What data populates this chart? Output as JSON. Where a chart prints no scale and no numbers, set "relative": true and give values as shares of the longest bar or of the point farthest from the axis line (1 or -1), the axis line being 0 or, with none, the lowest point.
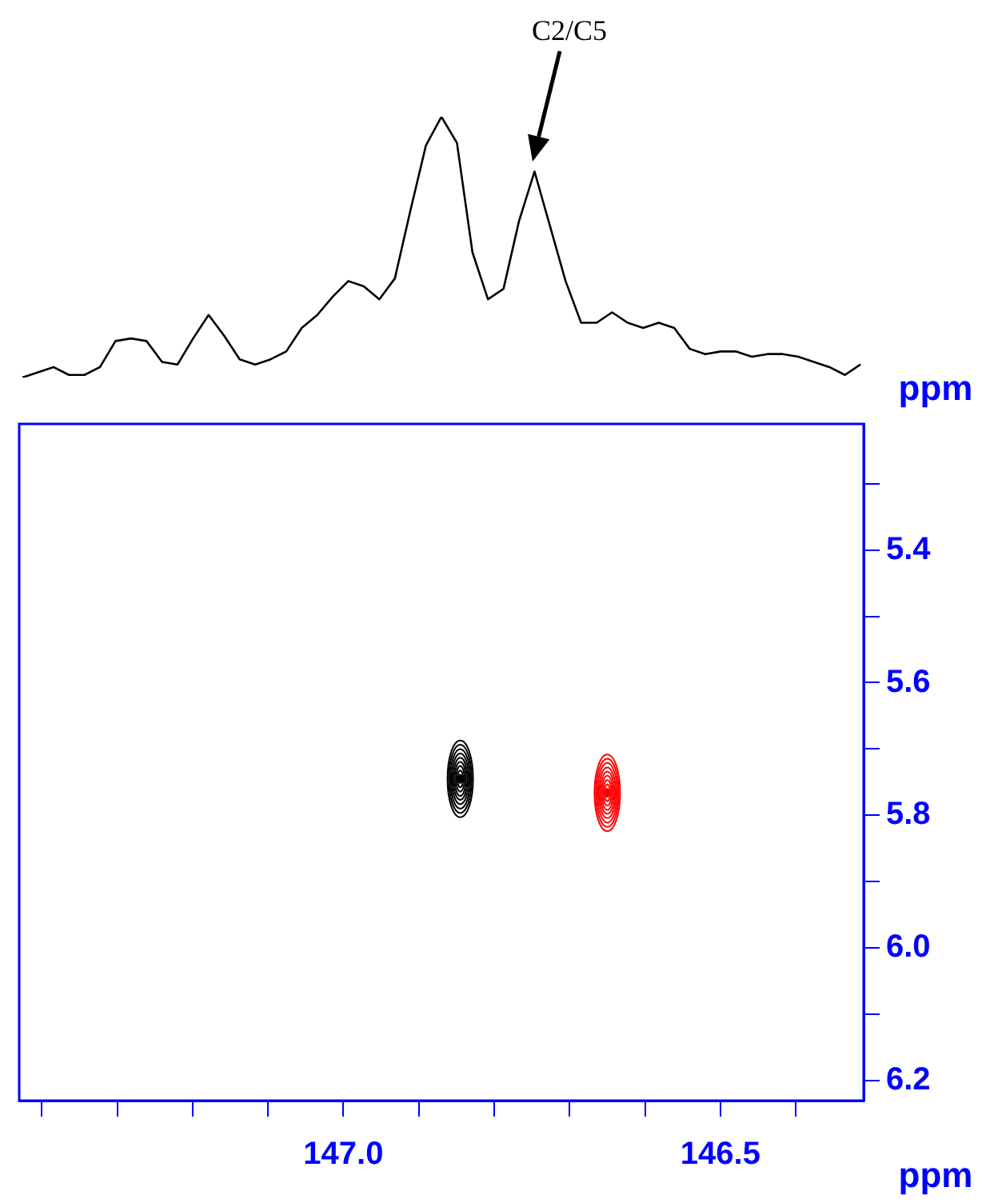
{
  "chart_data": [
    {
      "type": "line",
      "relative": true,
      "tick_labels": false,
      "grid": false,
      "legend": false,
      "marker": "none",
      "line_style": "solid",
      "categories": [
        null,
        null,
        null,
        null,
        null,
        null,
        null,
        null,
        null,
        null,
        null,
        null,
        null,
        null,
        null,
        null,
        null,
        null,
        null,
        null,
        null,
        null,
        null,
        null,
        null,
        null,
        null,
        null,
        null,
        null,
        null,
        null,
        null,
        null,
        null,
        null,
        null,
        null,
        null,
        null,
        null,
        null,
        null,
        null,
        null,
        null,
        null,
        null,
        null,
        null,
        null,
        null,
        null,
        null,
        null
      ],
      "series": [
        {
          "color": "#000000",
          "values": [
            0,
            0.02,
            0.04,
            0.01,
            0.01,
            0.04,
            0.14,
            0.15,
            0.14,
            0.06,
            0.05,
            0.15,
            0.24,
            0.16,
            0.07,
            0.05,
            0.07,
            0.1,
            0.19,
            0.24,
            0.31,
            0.37,
            0.35,
            0.3,
            0.38,
            0.64,
            0.89,
            1,
            0.9,
            0.48,
            0.3,
            0.34,
            0.6,
            0.79,
            0.58,
            0.37,
            0.21,
            0.21,
            0.25,
            0.21,
            0.19,
            0.21,
            0.19,
            0.11,
            0.09,
            0.1,
            0.1,
            0.08,
            0.09,
            0.09,
            0.08,
            0.06,
            0.04,
            0.01,
            0.05
          ]
        }
      ],
      "annotations": [
        "C2/C5"
      ]
    },
    {
      "type": "scatter",
      "xlabel": "ppm",
      "ylabel": "ppm",
      "xlim": [
        147.43,
        146.31
      ],
      "ylim": [
        6.23,
        5.21
      ],
      "grid": false,
      "legend": false,
      "xticks": [
        {
          "value": 147.4,
          "label": null
        },
        {
          "value": 147.3,
          "label": null
        },
        {
          "value": 147.2,
          "label": null
        },
        {
          "value": 147.1,
          "label": null
        },
        {
          "value": 147.0,
          "label": "147.0"
        },
        {
          "value": 146.9,
          "label": null
        },
        {
          "value": 146.8,
          "label": null
        },
        {
          "value": 146.7,
          "label": null
        },
        {
          "value": 146.6,
          "label": null
        },
        {
          "value": 146.5,
          "label": "146.5"
        },
        {
          "value": 146.4,
          "label": null
        }
      ],
      "yticks": [
        {
          "value": 5.3,
          "label": null
        },
        5.4,
        {
          "value": 5.5,
          "label": null
        },
        5.6,
        {
          "value": 5.7,
          "label": null
        },
        5.8,
        {
          "value": 5.9,
          "label": null
        },
        {
          "value": 6.0,
          "label": "6.0"
        },
        {
          "value": 6.1,
          "label": null
        },
        6.2
      ],
      "series": [
        {
          "color": "#000000",
          "x": [
            146.845
          ],
          "values": [
            5.745
          ]
        },
        {
          "color": "#ff0000",
          "x": [
            146.65
          ],
          "values": [
            5.766
          ]
        }
      ]
    }
  ]
}
